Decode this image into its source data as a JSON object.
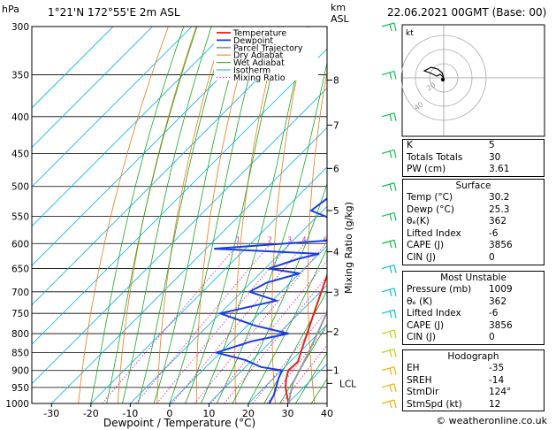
{
  "header": {
    "location": "1°21'N  172°55'E  2m  ASL",
    "datetime": "22.06.2021  00GMT  (Base: 00)",
    "hpa_label": "hPa",
    "km_label": "km",
    "asl_label": "ASL"
  },
  "chart_data": {
    "type": "line",
    "title": "Skew-T log-P diagram",
    "xlabel": "Dewpoint / Temperature (°C)",
    "ylabel": "hPa",
    "right_label": "Mixing Ratio (g/kg)",
    "xlim": [
      -35,
      40
    ],
    "ylim": [
      1000,
      300
    ],
    "x_ticks": [
      -30,
      -20,
      -10,
      0,
      10,
      20,
      30,
      40
    ],
    "y_ticks": [
      300,
      350,
      400,
      450,
      500,
      550,
      600,
      650,
      700,
      750,
      800,
      850,
      900,
      950,
      1000
    ],
    "km_ticks": [
      {
        "label": "1",
        "p": 899
      },
      {
        "label": "2",
        "p": 795
      },
      {
        "label": "3",
        "p": 701
      },
      {
        "label": "4",
        "p": 616
      },
      {
        "label": "5",
        "p": 540
      },
      {
        "label": "6",
        "p": 472
      },
      {
        "label": "7",
        "p": 411
      },
      {
        "label": "8",
        "p": 356
      }
    ],
    "lcl": {
      "label": "LCL",
      "p": 938
    },
    "mixing_ratio_labels": [
      "1",
      "2",
      "3",
      "4",
      "6",
      "8",
      "10",
      "16",
      "20",
      "25"
    ],
    "mixing_ratio_values": [
      1,
      2,
      3,
      4,
      6,
      8,
      10,
      16,
      20,
      25
    ],
    "legend": [
      "Temperature",
      "Dewpoint",
      "Parcel Trajectory",
      "Dry Adiabat",
      "Wet Adiabat",
      "Isotherm",
      "Mixing Ratio"
    ],
    "series": [
      {
        "name": "Temperature",
        "color": "#e8201c",
        "points": [
          [
            1000,
            30.2
          ],
          [
            975,
            27.8
          ],
          [
            950,
            25.4
          ],
          [
            925,
            23.4
          ],
          [
            900,
            21.8
          ],
          [
            875,
            22.0
          ],
          [
            850,
            20.4
          ],
          [
            800,
            17.2
          ],
          [
            750,
            13.8
          ],
          [
            700,
            10.2
          ],
          [
            650,
            6.4
          ],
          [
            600,
            2.4
          ],
          [
            550,
            -1.6
          ],
          [
            500,
            -6.4
          ],
          [
            450,
            -11.8
          ],
          [
            400,
            -17.8
          ],
          [
            350,
            -24.8
          ],
          [
            300,
            -33.0
          ]
        ]
      },
      {
        "name": "Dewpoint",
        "color": "#1a3ce6",
        "points": [
          [
            1000,
            25.3
          ],
          [
            975,
            24.4
          ],
          [
            950,
            23.0
          ],
          [
            925,
            21.4
          ],
          [
            900,
            20.2
          ],
          [
            890,
            14.0
          ],
          [
            870,
            8.0
          ],
          [
            850,
            -1.0
          ],
          [
            820,
            5.0
          ],
          [
            800,
            12.5
          ],
          [
            780,
            2.0
          ],
          [
            750,
            -10.0
          ],
          [
            720,
            1.0
          ],
          [
            700,
            -8.0
          ],
          [
            680,
            -6.0
          ],
          [
            660,
            0.0
          ],
          [
            650,
            -9.0
          ],
          [
            630,
            -4.0
          ],
          [
            620,
            0.0
          ],
          [
            610,
            -28.0
          ],
          [
            590,
            6.0
          ],
          [
            560,
            -3.0
          ],
          [
            540,
            -13.0
          ],
          [
            520,
            -12.0
          ],
          [
            500,
            -13.0
          ],
          [
            450,
            -8.5
          ],
          [
            430,
            -4.0
          ],
          [
            400,
            -28.0
          ],
          [
            380,
            -22.0
          ],
          [
            340,
            -35.0
          ],
          [
            300,
            -30.0
          ]
        ]
      },
      {
        "name": "Parcel Trajectory",
        "color": "#999999",
        "points": [
          [
            1000,
            30.2
          ],
          [
            938,
            26.2
          ],
          [
            900,
            24.6
          ],
          [
            850,
            22.4
          ],
          [
            800,
            19.8
          ],
          [
            750,
            17.0
          ],
          [
            700,
            14.0
          ],
          [
            650,
            10.8
          ],
          [
            600,
            7.2
          ],
          [
            550,
            3.2
          ],
          [
            500,
            -1.4
          ],
          [
            450,
            -6.6
          ],
          [
            400,
            -12.8
          ],
          [
            350,
            -20.4
          ],
          [
            300,
            -29.6
          ]
        ]
      }
    ],
    "wind_colors": [
      "#f2b200",
      "#f2b200",
      "#f2b200",
      "#b8d800",
      "#b8d800",
      "#00c8c8",
      "#00c8c8",
      "#00c8c8",
      "#10c050",
      "#10c050",
      "#10c050",
      "#10c050",
      "#10c050",
      "#10c050",
      "#10c050"
    ]
  },
  "hodograph": {
    "unit_label": "kt",
    "ring_labels": [
      "20",
      "40"
    ]
  },
  "indices": {
    "rows": [
      {
        "label": "K",
        "value": "5"
      },
      {
        "label": "Totals Totals",
        "value": "30"
      },
      {
        "label": "PW (cm)",
        "value": "3.61"
      }
    ]
  },
  "surface": {
    "title": "Surface",
    "rows": [
      {
        "label": "Temp (°C)",
        "value": "30.2"
      },
      {
        "label": "Dewp (°C)",
        "value": "25.3"
      },
      {
        "label": "θₑ(K)",
        "value": "362"
      },
      {
        "label": "Lifted Index",
        "value": "-6"
      },
      {
        "label": "CAPE (J)",
        "value": "3856"
      },
      {
        "label": "CIN (J)",
        "value": "0"
      }
    ]
  },
  "most_unstable": {
    "title": "Most Unstable",
    "rows": [
      {
        "label": "Pressure (mb)",
        "value": "1009"
      },
      {
        "label": "θₑ (K)",
        "value": "362"
      },
      {
        "label": "Lifted Index",
        "value": "-6"
      },
      {
        "label": "CAPE (J)",
        "value": "3856"
      },
      {
        "label": "CIN (J)",
        "value": "0"
      }
    ]
  },
  "hodograph_stats": {
    "title": "Hodograph",
    "rows": [
      {
        "label": "EH",
        "value": "-35"
      },
      {
        "label": "SREH",
        "value": "-14"
      },
      {
        "label": "StmDir",
        "value": "124°"
      },
      {
        "label": "StmSpd (kt)",
        "value": "12"
      }
    ]
  },
  "footer": {
    "credit": "© weatheronline.co.uk"
  }
}
